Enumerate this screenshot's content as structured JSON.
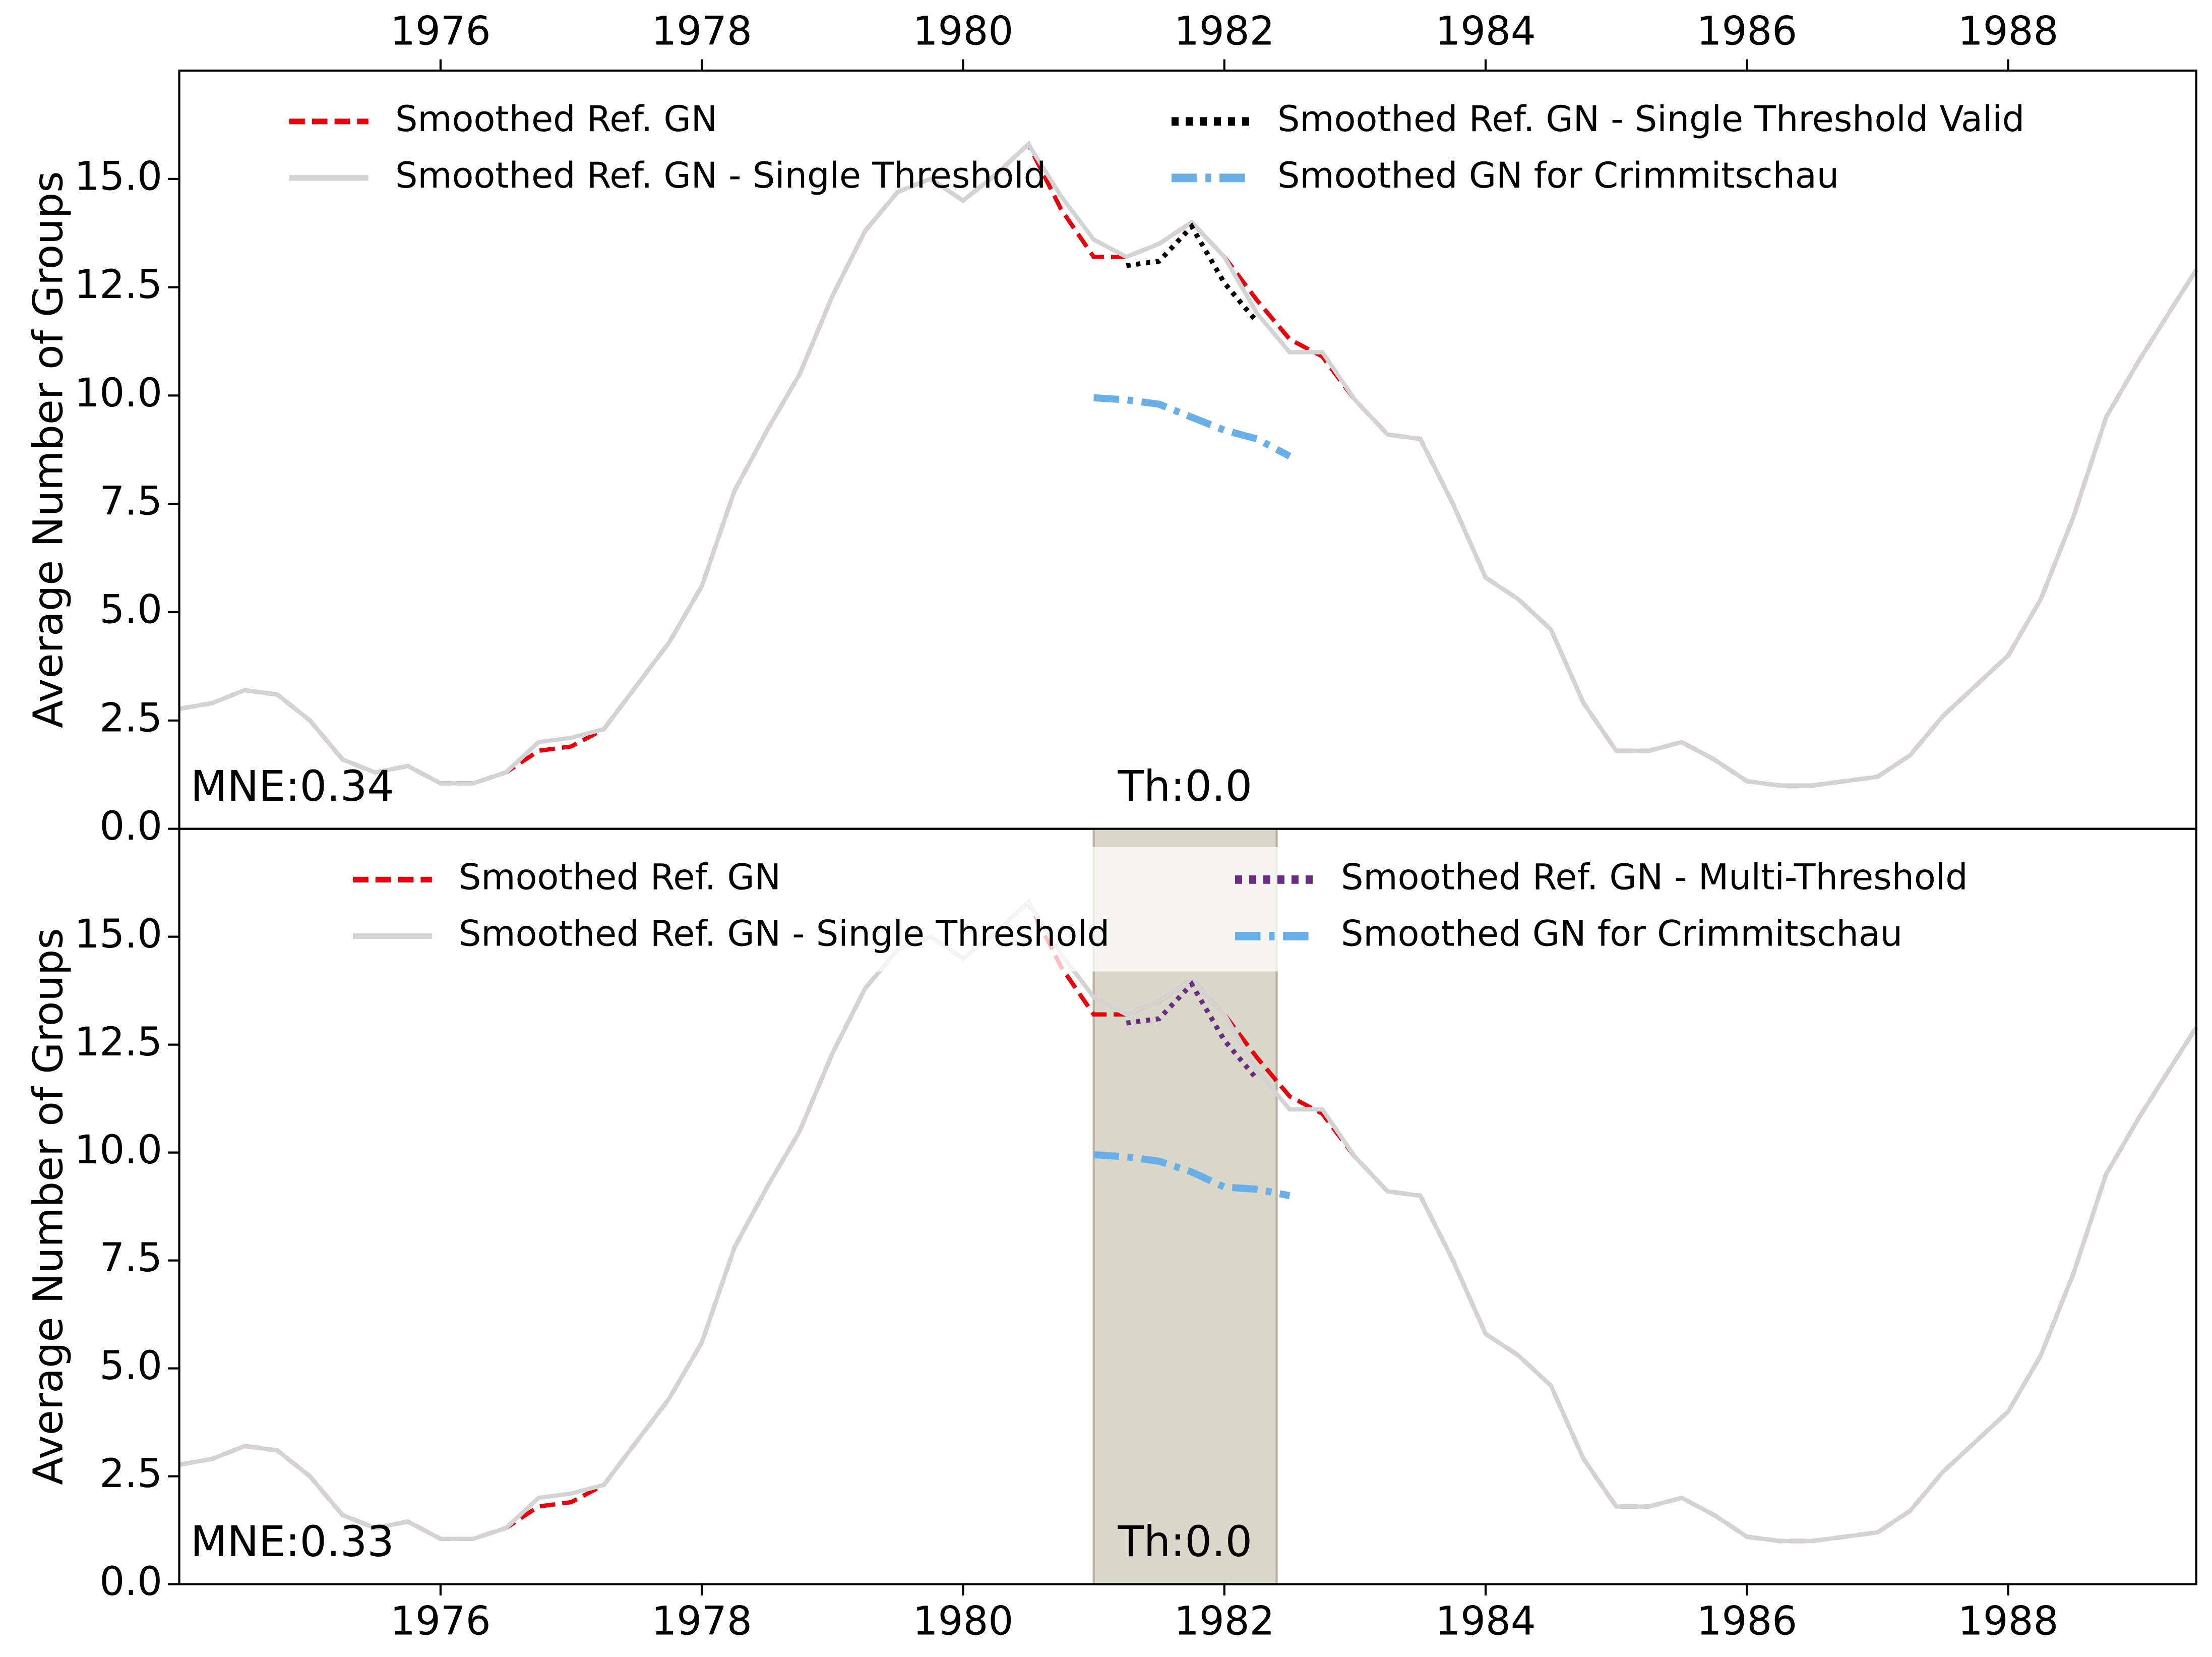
{
  "chart_data": [
    {
      "type": "line",
      "ylabel": "Average Number of Groups",
      "xaxis_position": "top",
      "annotations": [
        "MNE:0.34",
        "Th:0.0"
      ],
      "legend": {
        "loc": "upper center",
        "ncol": 2
      },
      "xlim": [
        1974.0,
        1989.44
      ],
      "ylim": [
        0,
        17.5
      ],
      "xticks": [
        1976,
        1978,
        1980,
        1982,
        1984,
        1986,
        1988
      ],
      "yticks": [
        {
          "value": 0,
          "label": "0.0"
        },
        2.5,
        {
          "value": 5,
          "label": "5.0"
        },
        7.5,
        {
          "value": 10,
          "label": "10.0"
        },
        12.5,
        {
          "value": 15,
          "label": "15.0"
        }
      ],
      "x": [
        1974.0,
        1974.25,
        1974.5,
        1974.75,
        1975.0,
        1975.25,
        1975.5,
        1975.75,
        1976.0,
        1976.25,
        1976.5,
        1976.75,
        1977.0,
        1977.25,
        1977.5,
        1977.75,
        1978.0,
        1978.25,
        1978.5,
        1978.75,
        1979.0,
        1979.25,
        1979.5,
        1979.75,
        1980.0,
        1980.25,
        1980.5,
        1980.75,
        1981.0,
        1981.25,
        1981.5,
        1981.75,
        1982.0,
        1982.25,
        1982.5,
        1982.75,
        1983.0,
        1983.25,
        1983.5,
        1983.75,
        1984.0,
        1984.25,
        1984.5,
        1984.75,
        1985.0,
        1985.25,
        1985.5,
        1985.75,
        1986.0,
        1986.25,
        1986.5,
        1986.75,
        1987.0,
        1987.25,
        1987.5,
        1987.75,
        1988.0,
        1988.25,
        1988.5,
        1988.75,
        1989.0,
        1989.25,
        1989.44
      ],
      "series": [
        {
          "name": "Smoothed Ref. GN",
          "color": "#e8000b",
          "style": "dashed",
          "values": [
            2.77,
            2.9,
            3.2,
            3.1,
            2.5,
            1.6,
            1.3,
            1.45,
            1.05,
            1.05,
            1.3,
            1.8,
            1.9,
            2.3,
            3.3,
            4.3,
            5.6,
            7.8,
            9.2,
            10.5,
            12.3,
            13.8,
            14.7,
            15.0,
            14.5,
            15.1,
            15.8,
            14.3,
            13.2,
            13.2,
            13.5,
            14.0,
            13.2,
            12.2,
            11.3,
            10.9,
            9.9,
            9.1,
            9.0,
            7.5,
            5.8,
            5.3,
            4.6,
            2.9,
            1.8,
            1.8,
            2.0,
            1.6,
            1.1,
            1.0,
            1.0,
            1.1,
            1.2,
            1.7,
            2.6,
            3.3,
            4.0,
            5.3,
            7.2,
            9.5,
            10.8,
            12.0,
            12.9
          ]
        },
        {
          "name": "Smoothed Ref. GN - Single Threshold",
          "color": "#d3d3d3",
          "style": "solid",
          "values": [
            2.77,
            2.9,
            3.2,
            3.1,
            2.5,
            1.6,
            1.3,
            1.45,
            1.05,
            1.05,
            1.3,
            2.0,
            2.1,
            2.3,
            3.3,
            4.3,
            5.6,
            7.8,
            9.2,
            10.5,
            12.3,
            13.8,
            14.7,
            15.0,
            14.5,
            15.1,
            15.8,
            14.6,
            13.6,
            13.2,
            13.5,
            14.0,
            13.2,
            11.9,
            11.0,
            11.0,
            9.9,
            9.1,
            9.0,
            7.5,
            5.8,
            5.3,
            4.6,
            2.9,
            1.8,
            1.8,
            2.0,
            1.6,
            1.1,
            1.0,
            1.0,
            1.1,
            1.2,
            1.7,
            2.6,
            3.3,
            4.0,
            5.3,
            7.2,
            9.5,
            10.8,
            12.0,
            12.9
          ]
        },
        {
          "name": "Smoothed Ref. GN - Single Threshold Valid",
          "color": "#000000",
          "style": "dotted",
          "values": [
            null,
            null,
            null,
            null,
            null,
            null,
            null,
            null,
            null,
            null,
            null,
            null,
            null,
            null,
            null,
            null,
            null,
            null,
            null,
            null,
            null,
            null,
            null,
            null,
            null,
            null,
            null,
            null,
            null,
            13.0,
            13.1,
            13.9,
            12.6,
            11.7,
            null,
            null,
            null,
            null,
            null,
            null,
            null,
            null,
            null,
            null,
            null,
            null,
            null,
            null,
            null,
            null,
            null,
            null,
            null,
            null,
            null,
            null,
            null,
            null,
            null,
            null,
            null,
            null,
            null
          ]
        },
        {
          "name": "Smoothed GN for Crimmitschau",
          "color": "#6aaee8",
          "style": "dashdot",
          "values": [
            null,
            null,
            null,
            null,
            null,
            null,
            null,
            null,
            null,
            null,
            null,
            null,
            null,
            null,
            null,
            null,
            null,
            null,
            null,
            null,
            null,
            null,
            null,
            null,
            null,
            null,
            null,
            null,
            9.95,
            9.9,
            9.8,
            9.5,
            9.2,
            9.0,
            8.6,
            null,
            null,
            null,
            null,
            null,
            null,
            null,
            null,
            null,
            null,
            null,
            null,
            null,
            null,
            null,
            null,
            null,
            null,
            null,
            null,
            null,
            null,
            null,
            null,
            null,
            null,
            null,
            null
          ]
        }
      ]
    },
    {
      "type": "line",
      "ylabel": "Average Number of Groups",
      "xaxis_position": "bottom",
      "annotations": [
        "MNE:0.33",
        "Th:0.0"
      ],
      "legend": {
        "loc": "upper center",
        "ncol": 2
      },
      "span": [
        1981.0,
        1982.4
      ],
      "span_color": "#d9d7c9",
      "xlim": [
        1974.0,
        1989.44
      ],
      "ylim": [
        0,
        17.5
      ],
      "xticks": [
        1976,
        1978,
        1980,
        1982,
        1984,
        1986,
        1988
      ],
      "yticks": [
        {
          "value": 0,
          "label": "0.0"
        },
        2.5,
        {
          "value": 5,
          "label": "5.0"
        },
        7.5,
        {
          "value": 10,
          "label": "10.0"
        },
        12.5,
        {
          "value": 15,
          "label": "15.0"
        }
      ],
      "x": [
        1974.0,
        1974.25,
        1974.5,
        1974.75,
        1975.0,
        1975.25,
        1975.5,
        1975.75,
        1976.0,
        1976.25,
        1976.5,
        1976.75,
        1977.0,
        1977.25,
        1977.5,
        1977.75,
        1978.0,
        1978.25,
        1978.5,
        1978.75,
        1979.0,
        1979.25,
        1979.5,
        1979.75,
        1980.0,
        1980.25,
        1980.5,
        1980.75,
        1981.0,
        1981.25,
        1981.5,
        1981.75,
        1982.0,
        1982.25,
        1982.5,
        1982.75,
        1983.0,
        1983.25,
        1983.5,
        1983.75,
        1984.0,
        1984.25,
        1984.5,
        1984.75,
        1985.0,
        1985.25,
        1985.5,
        1985.75,
        1986.0,
        1986.25,
        1986.5,
        1986.75,
        1987.0,
        1987.25,
        1987.5,
        1987.75,
        1988.0,
        1988.25,
        1988.5,
        1988.75,
        1989.0,
        1989.25,
        1989.44
      ],
      "series": [
        {
          "name": "Smoothed Ref. GN",
          "color": "#e8000b",
          "style": "dashed",
          "values": [
            2.77,
            2.9,
            3.2,
            3.1,
            2.5,
            1.6,
            1.3,
            1.45,
            1.05,
            1.05,
            1.3,
            1.8,
            1.9,
            2.3,
            3.3,
            4.3,
            5.6,
            7.8,
            9.2,
            10.5,
            12.3,
            13.8,
            14.7,
            15.0,
            14.5,
            15.1,
            15.8,
            14.3,
            13.2,
            13.2,
            13.5,
            14.0,
            13.2,
            12.2,
            11.3,
            10.9,
            9.9,
            9.1,
            9.0,
            7.5,
            5.8,
            5.3,
            4.6,
            2.9,
            1.8,
            1.8,
            2.0,
            1.6,
            1.1,
            1.0,
            1.0,
            1.1,
            1.2,
            1.7,
            2.6,
            3.3,
            4.0,
            5.3,
            7.2,
            9.5,
            10.8,
            12.0,
            12.9
          ]
        },
        {
          "name": "Smoothed Ref. GN - Single Threshold",
          "color": "#d3d3d3",
          "style": "solid",
          "values": [
            2.77,
            2.9,
            3.2,
            3.1,
            2.5,
            1.6,
            1.3,
            1.45,
            1.05,
            1.05,
            1.3,
            2.0,
            2.1,
            2.3,
            3.3,
            4.3,
            5.6,
            7.8,
            9.2,
            10.5,
            12.3,
            13.8,
            14.7,
            15.0,
            14.5,
            15.1,
            15.8,
            14.6,
            13.6,
            13.2,
            13.5,
            14.0,
            13.2,
            11.9,
            11.0,
            11.0,
            9.9,
            9.1,
            9.0,
            7.5,
            5.8,
            5.3,
            4.6,
            2.9,
            1.8,
            1.8,
            2.0,
            1.6,
            1.1,
            1.0,
            1.0,
            1.1,
            1.2,
            1.7,
            2.6,
            3.3,
            4.0,
            5.3,
            7.2,
            9.5,
            10.8,
            12.0,
            12.9
          ]
        },
        {
          "name": "Smoothed Ref. GN - Multi-Threshold",
          "color": "#6a2c82",
          "style": "dotted",
          "values": [
            null,
            null,
            null,
            null,
            null,
            null,
            null,
            null,
            null,
            null,
            null,
            null,
            null,
            null,
            null,
            null,
            null,
            null,
            null,
            null,
            null,
            null,
            null,
            null,
            null,
            null,
            null,
            null,
            null,
            13.0,
            13.1,
            13.9,
            12.6,
            11.7,
            null,
            null,
            null,
            null,
            null,
            null,
            null,
            null,
            null,
            null,
            null,
            null,
            null,
            null,
            null,
            null,
            null,
            null,
            null,
            null,
            null,
            null,
            null,
            null,
            null,
            null,
            null,
            null,
            null
          ]
        },
        {
          "name": "Smoothed GN for Crimmitschau",
          "color": "#6aaee8",
          "style": "dashdot",
          "values": [
            null,
            null,
            null,
            null,
            null,
            null,
            null,
            null,
            null,
            null,
            null,
            null,
            null,
            null,
            null,
            null,
            null,
            null,
            null,
            null,
            null,
            null,
            null,
            null,
            null,
            null,
            null,
            null,
            9.95,
            9.9,
            9.8,
            9.55,
            9.2,
            9.15,
            9.0,
            null,
            null,
            null,
            null,
            null,
            null,
            null,
            null,
            null,
            null,
            null,
            null,
            null,
            null,
            null,
            null,
            null,
            null,
            null,
            null,
            null,
            null,
            null,
            null,
            null,
            null,
            null,
            null
          ]
        }
      ]
    }
  ]
}
